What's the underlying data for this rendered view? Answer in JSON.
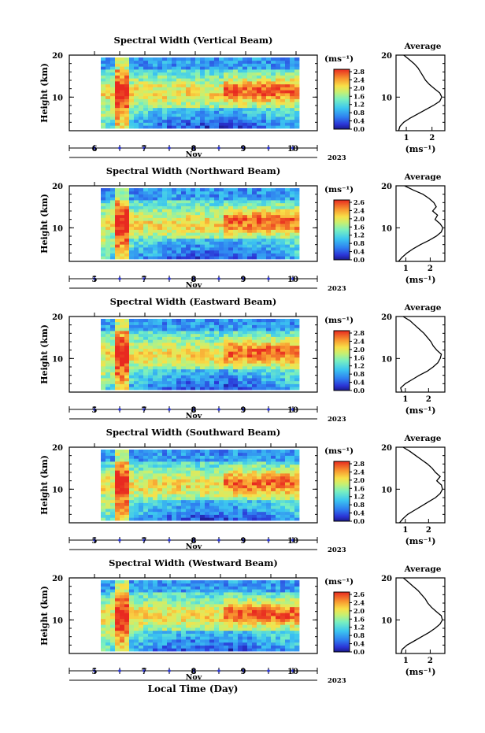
{
  "global": {
    "xlabel": "Local Time (Day)"
  },
  "colorbar_ticks": [
    "2.8",
    "2.4",
    "2.0",
    "1.6",
    "1.2",
    "0.8",
    "0.4",
    "0.0"
  ],
  "colorbar_ticks_alt": [
    "2.6",
    "2.4",
    "2.0",
    "1.6",
    "1.2",
    "0.8",
    "0.4",
    "0.0"
  ],
  "unit_label": "(ms⁻¹)",
  "chart_data": [
    {
      "type": "heatmap",
      "title": "Spectral Width (Vertical Beam)",
      "ylabel": "Height (km)",
      "xlabel": "Local Time (Day)",
      "x_ticks": [
        "6",
        "7",
        "8",
        "9",
        "10"
      ],
      "x_month": "Nov",
      "x_year": "2023",
      "ylim": [
        2,
        20
      ],
      "y_ticks": [
        10,
        20
      ],
      "colorbar": {
        "label": "(ms⁻¹)",
        "range": [
          0.0,
          2.8
        ],
        "ticks": [
          "2.8",
          "2.4",
          "2.0",
          "1.6",
          "1.2",
          "0.8",
          "0.4",
          "0.0"
        ]
      },
      "profile": {
        "title": "Average",
        "xlabel": "(ms⁻¹)",
        "x_ticks": [
          "1",
          "2"
        ],
        "xlim": [
          0.6,
          2.5
        ],
        "height": [
          2,
          3,
          4,
          5,
          6,
          7,
          8,
          9,
          10,
          11,
          12,
          13,
          14,
          15,
          16,
          17,
          18,
          19,
          20
        ],
        "values": [
          0.7,
          0.75,
          0.9,
          1.15,
          1.45,
          1.75,
          2.05,
          2.3,
          2.38,
          2.3,
          2.1,
          1.9,
          1.75,
          1.65,
          1.55,
          1.45,
          1.3,
          1.1,
          0.9
        ]
      }
    },
    {
      "type": "heatmap",
      "title": "Spectral Width (Northward Beam)",
      "ylabel": "Height (km)",
      "xlabel": "Local Time (Day)",
      "x_ticks": [
        "5",
        "7",
        "8",
        "9",
        "10"
      ],
      "x_month": "Nov",
      "x_year": "2023",
      "ylim": [
        2,
        20
      ],
      "y_ticks": [
        10,
        20
      ],
      "colorbar": {
        "label": "(ms⁻¹)",
        "range": [
          0.0,
          2.8
        ],
        "ticks": [
          "2.6",
          "2.4",
          "2.0",
          "1.6",
          "1.2",
          "0.8",
          "0.4",
          "0.0"
        ]
      },
      "profile": {
        "title": "Average",
        "xlabel": "(ms⁻¹)",
        "x_ticks": [
          "1",
          "2"
        ],
        "xlim": [
          0.6,
          2.6
        ],
        "height": [
          2,
          3,
          4,
          5,
          6,
          7,
          8,
          9,
          10,
          11,
          12,
          13,
          14,
          15,
          16,
          17,
          18,
          19,
          20
        ],
        "values": [
          0.7,
          0.85,
          1.05,
          1.3,
          1.6,
          1.95,
          2.25,
          2.45,
          2.52,
          2.4,
          2.2,
          2.3,
          2.1,
          2.25,
          2.15,
          1.95,
          1.7,
          1.3,
          0.95
        ]
      }
    },
    {
      "type": "heatmap",
      "title": "Spectral Width (Eastward Beam)",
      "ylabel": "Height (km)",
      "xlabel": "Local Time (Day)",
      "x_ticks": [
        "5",
        "7",
        "8",
        "9",
        "10"
      ],
      "x_month": "Nov",
      "x_year": "2023",
      "ylim": [
        2,
        20
      ],
      "y_ticks": [
        10,
        20
      ],
      "colorbar": {
        "label": "(ms⁻¹)",
        "range": [
          0.0,
          2.8
        ],
        "ticks": [
          "2.8",
          "2.4",
          "2.0",
          "1.6",
          "1.2",
          "0.8",
          "0.4",
          "0.0"
        ]
      },
      "profile": {
        "title": "Average",
        "xlabel": "(ms⁻¹)",
        "x_ticks": [
          "1",
          "2"
        ],
        "xlim": [
          0.6,
          2.7
        ],
        "height": [
          2,
          3,
          4,
          5,
          6,
          7,
          8,
          9,
          10,
          11,
          12,
          13,
          14,
          15,
          16,
          17,
          18,
          19,
          20
        ],
        "values": [
          0.85,
          0.8,
          1.0,
          1.3,
          1.6,
          1.95,
          2.2,
          2.4,
          2.5,
          2.55,
          2.35,
          2.2,
          2.1,
          1.95,
          1.8,
          1.6,
          1.4,
          1.2,
          0.9
        ]
      }
    },
    {
      "type": "heatmap",
      "title": "Spectral Width (Southward Beam)",
      "ylabel": "Height (km)",
      "xlabel": "Local Time (Day)",
      "x_ticks": [
        "5",
        "7",
        "8",
        "9",
        "10"
      ],
      "x_month": "Nov",
      "x_year": "2023",
      "ylim": [
        2,
        20
      ],
      "y_ticks": [
        10,
        20
      ],
      "colorbar": {
        "label": "(ms⁻¹)",
        "range": [
          0.0,
          2.8
        ],
        "ticks": [
          "2.8",
          "2.4",
          "2.0",
          "1.6",
          "1.2",
          "0.8",
          "0.4",
          "0.0"
        ]
      },
      "profile": {
        "title": "Average",
        "xlabel": "(ms⁻¹)",
        "x_ticks": [
          "1",
          "2"
        ],
        "xlim": [
          0.6,
          2.7
        ],
        "height": [
          2,
          3,
          4,
          5,
          6,
          7,
          8,
          9,
          10,
          11,
          12,
          13,
          14,
          15,
          16,
          17,
          18,
          19,
          20
        ],
        "values": [
          0.75,
          0.9,
          1.1,
          1.4,
          1.7,
          2.0,
          2.3,
          2.5,
          2.6,
          2.55,
          2.35,
          2.5,
          2.3,
          2.15,
          1.95,
          1.7,
          1.45,
          1.2,
          0.9
        ]
      }
    },
    {
      "type": "heatmap",
      "title": "Spectral Width (Westward Beam)",
      "ylabel": "Height (km)",
      "xlabel": "Local Time (Day)",
      "x_ticks": [
        "5",
        "7",
        "8",
        "9",
        "10"
      ],
      "x_month": "Nov",
      "x_year": "2023",
      "ylim": [
        2,
        20
      ],
      "y_ticks": [
        10,
        20
      ],
      "colorbar": {
        "label": "(ms⁻¹)",
        "range": [
          0.0,
          2.8
        ],
        "ticks": [
          "2.6",
          "2.4",
          "2.0",
          "1.6",
          "1.2",
          "0.8",
          "0.4",
          "0.0"
        ]
      },
      "profile": {
        "title": "Average",
        "xlabel": "(ms⁻¹)",
        "x_ticks": [
          "1",
          "2"
        ],
        "xlim": [
          0.6,
          2.6
        ],
        "height": [
          2,
          3,
          4,
          5,
          6,
          7,
          8,
          9,
          10,
          11,
          12,
          13,
          14,
          15,
          16,
          17,
          18,
          19,
          20
        ],
        "values": [
          0.8,
          0.85,
          1.05,
          1.35,
          1.65,
          1.95,
          2.2,
          2.4,
          2.5,
          2.45,
          2.25,
          2.05,
          1.9,
          1.8,
          1.65,
          1.5,
          1.3,
          1.1,
          0.9
        ]
      }
    }
  ]
}
